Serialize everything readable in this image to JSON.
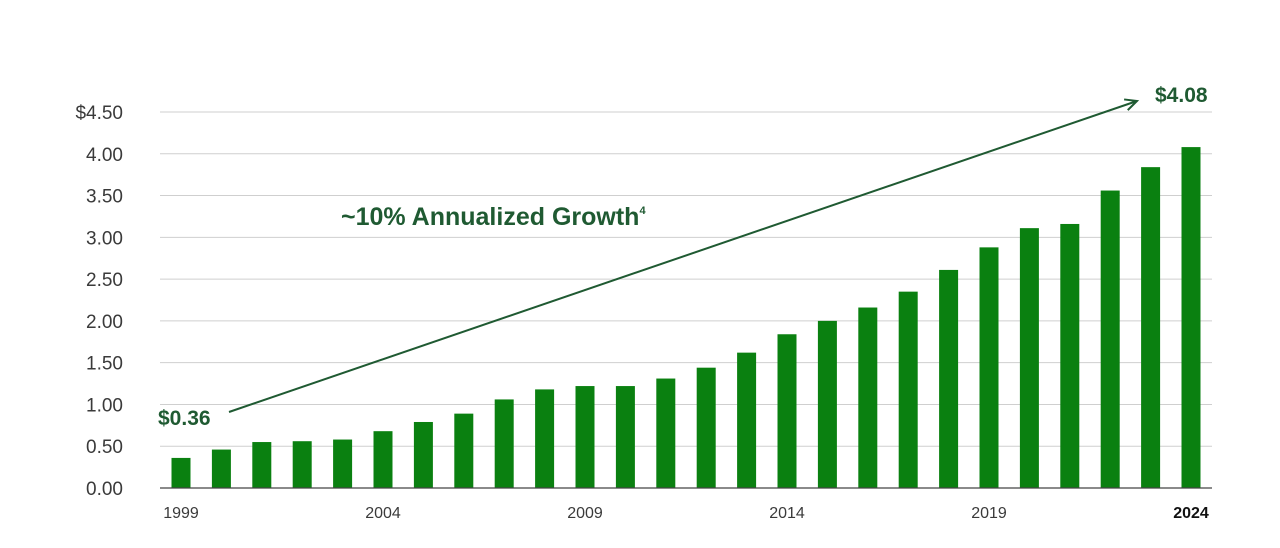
{
  "chart_data": {
    "type": "bar",
    "categories": [
      "1999",
      "2000",
      "2001",
      "2002",
      "2003",
      "2004",
      "2005",
      "2006",
      "2007",
      "2008",
      "2009",
      "2010",
      "2011",
      "2012",
      "2013",
      "2014",
      "2015",
      "2016",
      "2017",
      "2018",
      "2019",
      "2020",
      "2021",
      "2022",
      "2023",
      "2024"
    ],
    "values": [
      0.36,
      0.46,
      0.55,
      0.56,
      0.58,
      0.68,
      0.79,
      0.89,
      1.06,
      1.18,
      1.22,
      1.22,
      1.31,
      1.44,
      1.62,
      1.84,
      2.0,
      2.16,
      2.35,
      2.61,
      2.88,
      3.11,
      3.16,
      3.56,
      3.84,
      4.08
    ],
    "ylim": [
      0,
      4.5
    ],
    "y_tick_labels": [
      "0.00",
      "0.50",
      "1.00",
      "1.50",
      "2.00",
      "2.50",
      "3.00",
      "3.50",
      "4.00",
      "$4.50"
    ],
    "x_tick_labels": [
      {
        "category": "1999",
        "label": "1999",
        "bold": false
      },
      {
        "category": "2004",
        "label": "2004",
        "bold": false
      },
      {
        "category": "2009",
        "label": "2009",
        "bold": false
      },
      {
        "category": "2014",
        "label": "2014",
        "bold": false
      },
      {
        "category": "2019",
        "label": "2019",
        "bold": false
      },
      {
        "category": "2024",
        "label": "2024",
        "bold": true
      }
    ],
    "annotations": {
      "start_label": "$0.36",
      "end_label": "$4.08",
      "growth_text": "~10% Annualized Growth",
      "growth_superscript": "4"
    },
    "grid": true,
    "legend": "none",
    "colors": {
      "bar": "#0a8010",
      "accent": "#1f5a32",
      "grid": "#cfcfcf"
    }
  }
}
